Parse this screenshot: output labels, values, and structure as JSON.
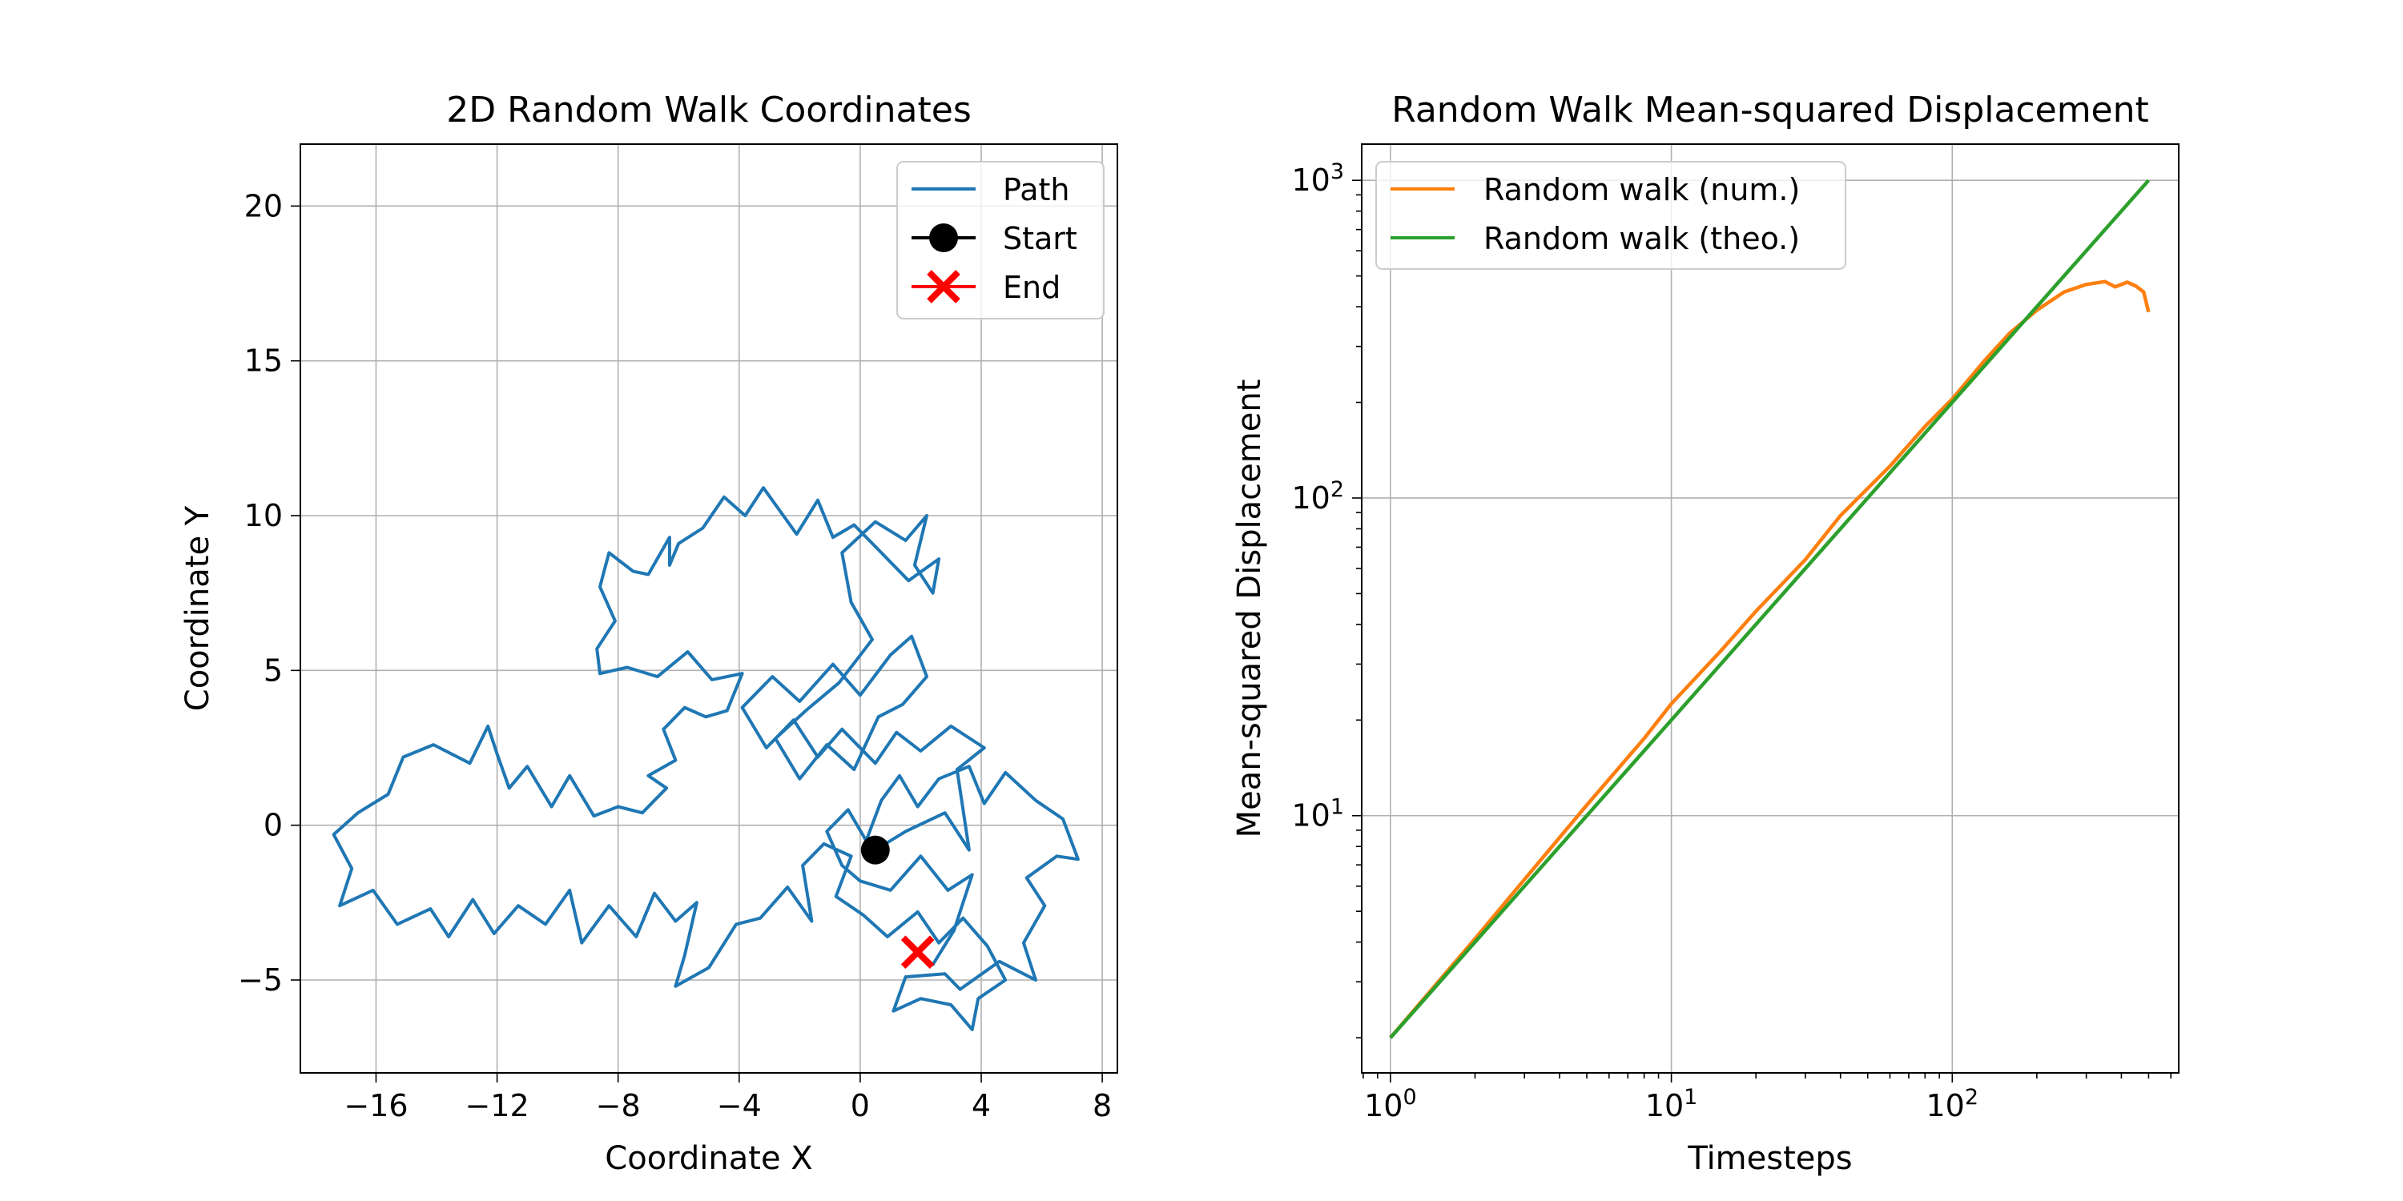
{
  "chart_data": [
    {
      "type": "line",
      "title": "2D Random Walk Coordinates",
      "xlabel": "Coordinate X",
      "ylabel": "Coordinate Y",
      "xlim": [
        -18.5,
        8.5
      ],
      "ylim": [
        -8,
        22
      ],
      "xticks": [
        -16,
        -12,
        -8,
        -4,
        0,
        4,
        8
      ],
      "yticks": [
        -5,
        0,
        5,
        10,
        15,
        20
      ],
      "xtick_labels": [
        "−16",
        "−12",
        "−8",
        "−4",
        "0",
        "4",
        "8"
      ],
      "ytick_labels": [
        "−5",
        "0",
        "5",
        "10",
        "15",
        "20"
      ],
      "grid": true,
      "legend_position": "top-right",
      "legend": [
        "Path",
        "Start",
        "End"
      ],
      "colors": {
        "path": "#1f77b4",
        "start": "#000000",
        "end": "#ff0000"
      },
      "start": [
        0.5,
        -0.8
      ],
      "end": [
        1.9,
        -4.1
      ],
      "path": [
        [
          0.5,
          -0.8
        ],
        [
          1.5,
          -0.2
        ],
        [
          2.8,
          0.4
        ],
        [
          3.6,
          -0.8
        ],
        [
          3.2,
          1.8
        ],
        [
          4.1,
          2.5
        ],
        [
          3.0,
          3.2
        ],
        [
          2.0,
          2.4
        ],
        [
          1.2,
          3.0
        ],
        [
          0.5,
          2.0
        ],
        [
          -0.6,
          3.1
        ],
        [
          -1.4,
          2.2
        ],
        [
          -2.2,
          3.4
        ],
        [
          -3.1,
          2.5
        ],
        [
          -3.9,
          3.8
        ],
        [
          -2.9,
          4.8
        ],
        [
          -2.0,
          4.0
        ],
        [
          -0.9,
          5.2
        ],
        [
          0.0,
          4.2
        ],
        [
          1.0,
          5.5
        ],
        [
          1.7,
          6.1
        ],
        [
          2.2,
          4.8
        ],
        [
          1.4,
          3.9
        ],
        [
          0.6,
          3.5
        ],
        [
          -0.2,
          1.8
        ],
        [
          -1.1,
          2.6
        ],
        [
          -2.0,
          1.5
        ],
        [
          -2.8,
          2.8
        ],
        [
          -1.8,
          3.7
        ],
        [
          -0.7,
          4.6
        ],
        [
          0.4,
          6.0
        ],
        [
          -0.3,
          7.2
        ],
        [
          -0.6,
          8.8
        ],
        [
          0.5,
          9.8
        ],
        [
          1.5,
          9.2
        ],
        [
          2.2,
          10.0
        ],
        [
          1.8,
          8.4
        ],
        [
          2.4,
          7.5
        ],
        [
          2.6,
          8.6
        ],
        [
          1.6,
          7.9
        ],
        [
          0.6,
          8.9
        ],
        [
          -0.2,
          9.7
        ],
        [
          -0.9,
          9.3
        ],
        [
          -1.4,
          10.5
        ],
        [
          -2.1,
          9.4
        ],
        [
          -3.2,
          10.9
        ],
        [
          -3.8,
          10.0
        ],
        [
          -4.5,
          10.6
        ],
        [
          -5.2,
          9.6
        ],
        [
          -6.0,
          9.1
        ],
        [
          -6.3,
          8.4
        ],
        [
          -6.3,
          9.3
        ],
        [
          -7.0,
          8.1
        ],
        [
          -7.5,
          8.2
        ],
        [
          -8.3,
          8.8
        ],
        [
          -8.6,
          7.7
        ],
        [
          -8.1,
          6.6
        ],
        [
          -8.7,
          5.7
        ],
        [
          -8.6,
          4.9
        ],
        [
          -7.7,
          5.1
        ],
        [
          -6.7,
          4.8
        ],
        [
          -5.7,
          5.6
        ],
        [
          -4.9,
          4.7
        ],
        [
          -3.9,
          4.9
        ],
        [
          -4.4,
          3.7
        ],
        [
          -5.1,
          3.5
        ],
        [
          -5.8,
          3.8
        ],
        [
          -6.5,
          3.1
        ],
        [
          -6.1,
          2.1
        ],
        [
          -7.0,
          1.6
        ],
        [
          -6.4,
          1.2
        ],
        [
          -7.2,
          0.4
        ],
        [
          -8.0,
          0.6
        ],
        [
          -8.8,
          0.3
        ],
        [
          -9.6,
          1.6
        ],
        [
          -10.2,
          0.6
        ],
        [
          -11.0,
          1.9
        ],
        [
          -11.6,
          1.2
        ],
        [
          -12.0,
          2.3
        ],
        [
          -12.3,
          3.2
        ],
        [
          -12.9,
          2.0
        ],
        [
          -14.1,
          2.6
        ],
        [
          -15.1,
          2.2
        ],
        [
          -15.6,
          1.0
        ],
        [
          -16.6,
          0.4
        ],
        [
          -17.4,
          -0.3
        ],
        [
          -16.8,
          -1.4
        ],
        [
          -17.2,
          -2.6
        ],
        [
          -16.1,
          -2.1
        ],
        [
          -15.3,
          -3.2
        ],
        [
          -14.2,
          -2.7
        ],
        [
          -13.6,
          -3.6
        ],
        [
          -12.8,
          -2.4
        ],
        [
          -12.1,
          -3.5
        ],
        [
          -11.3,
          -2.6
        ],
        [
          -10.4,
          -3.2
        ],
        [
          -9.6,
          -2.1
        ],
        [
          -9.2,
          -3.8
        ],
        [
          -8.3,
          -2.6
        ],
        [
          -7.4,
          -3.6
        ],
        [
          -6.8,
          -2.2
        ],
        [
          -6.1,
          -3.1
        ],
        [
          -5.4,
          -2.5
        ],
        [
          -5.8,
          -4.2
        ],
        [
          -6.1,
          -5.2
        ],
        [
          -5.0,
          -4.6
        ],
        [
          -4.1,
          -3.2
        ],
        [
          -3.3,
          -3.0
        ],
        [
          -2.4,
          -2.0
        ],
        [
          -1.6,
          -3.1
        ],
        [
          -1.9,
          -1.3
        ],
        [
          -1.2,
          -0.6
        ],
        [
          -0.3,
          -1.0
        ],
        [
          -0.8,
          -2.3
        ],
        [
          0.1,
          -2.9
        ],
        [
          0.9,
          -3.6
        ],
        [
          1.9,
          -2.8
        ],
        [
          2.6,
          -3.8
        ],
        [
          3.4,
          -3.0
        ],
        [
          4.2,
          -3.9
        ],
        [
          4.8,
          -5.0
        ],
        [
          3.9,
          -5.6
        ],
        [
          3.7,
          -6.6
        ],
        [
          3.0,
          -5.8
        ],
        [
          2.0,
          -5.6
        ],
        [
          1.1,
          -6.0
        ],
        [
          1.5,
          -4.9
        ],
        [
          2.8,
          -4.8
        ],
        [
          3.3,
          -5.3
        ],
        [
          4.6,
          -4.4
        ],
        [
          5.8,
          -5.0
        ],
        [
          5.4,
          -3.8
        ],
        [
          6.1,
          -2.6
        ],
        [
          5.5,
          -1.7
        ],
        [
          6.5,
          -1.0
        ],
        [
          7.2,
          -1.1
        ],
        [
          6.7,
          0.2
        ],
        [
          5.8,
          0.8
        ],
        [
          4.8,
          1.7
        ],
        [
          4.1,
          0.7
        ],
        [
          3.6,
          1.9
        ],
        [
          2.6,
          1.5
        ],
        [
          1.9,
          0.6
        ],
        [
          1.3,
          1.6
        ],
        [
          0.7,
          0.8
        ],
        [
          0.2,
          -0.5
        ],
        [
          -0.4,
          0.5
        ],
        [
          -1.1,
          -0.2
        ],
        [
          -0.6,
          -1.3
        ],
        [
          0.0,
          -1.8
        ],
        [
          1.0,
          -2.1
        ],
        [
          2.0,
          -1.0
        ],
        [
          2.9,
          -2.1
        ],
        [
          3.7,
          -1.6
        ],
        [
          3.1,
          -3.4
        ],
        [
          2.4,
          -4.5
        ],
        [
          1.9,
          -4.1
        ]
      ]
    },
    {
      "type": "line",
      "title": "Random Walk Mean-squared Displacement",
      "xlabel": "Timesteps",
      "ylabel": "Mean-squared Displacement",
      "xscale": "log",
      "yscale": "log",
      "xlim": [
        0.79,
        640
      ],
      "ylim": [
        1.55,
        1300
      ],
      "xticks": [
        1,
        10,
        100
      ],
      "yticks": [
        10,
        100,
        1000
      ],
      "xtick_base": "10",
      "xtick_exps": [
        "0",
        "1",
        "2"
      ],
      "ytick_base": "10",
      "ytick_exps": [
        "1",
        "2",
        "3"
      ],
      "grid": true,
      "legend_position": "top-left",
      "series": [
        {
          "name": "Random walk (num.)",
          "color": "#ff7f0e",
          "x": [
            1,
            2,
            3,
            5,
            8,
            10,
            15,
            20,
            30,
            40,
            60,
            80,
            100,
            130,
            160,
            200,
            250,
            300,
            350,
            380,
            420,
            450,
            480,
            500
          ],
          "y": [
            2,
            4.1,
            6.3,
            10.8,
            17.5,
            22.5,
            33,
            44,
            64,
            88,
            126,
            168,
            205,
            270,
            330,
            390,
            445,
            470,
            480,
            462,
            478,
            465,
            445,
            385
          ]
        },
        {
          "name": "Random walk (theo.)",
          "color": "#2ca02c",
          "x": [
            1,
            500
          ],
          "y": [
            2,
            1000
          ]
        }
      ]
    }
  ]
}
